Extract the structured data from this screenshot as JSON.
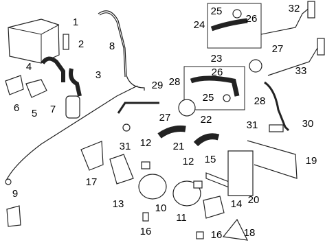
{
  "callouts": [
    {
      "label": "1"
    },
    {
      "label": "2"
    },
    {
      "label": "3"
    },
    {
      "label": "4"
    },
    {
      "label": "5"
    },
    {
      "label": "6"
    },
    {
      "label": "7"
    },
    {
      "label": "8"
    },
    {
      "label": "9"
    },
    {
      "label": "10"
    },
    {
      "label": "11"
    },
    {
      "label": "12"
    },
    {
      "label": "12"
    },
    {
      "label": "13"
    },
    {
      "label": "14"
    },
    {
      "label": "15"
    },
    {
      "label": "16"
    },
    {
      "label": "16"
    },
    {
      "label": "17"
    },
    {
      "label": "18"
    },
    {
      "label": "19"
    },
    {
      "label": "20"
    },
    {
      "label": "21"
    },
    {
      "label": "22"
    },
    {
      "label": "23"
    },
    {
      "label": "24"
    },
    {
      "label": "25"
    },
    {
      "label": "25"
    },
    {
      "label": "26"
    },
    {
      "label": "26"
    },
    {
      "label": "27"
    },
    {
      "label": "27"
    },
    {
      "label": "28"
    },
    {
      "label": "28"
    },
    {
      "label": "29"
    },
    {
      "label": "30"
    },
    {
      "label": "31"
    },
    {
      "label": "31"
    },
    {
      "label": "32"
    },
    {
      "label": "33"
    }
  ]
}
